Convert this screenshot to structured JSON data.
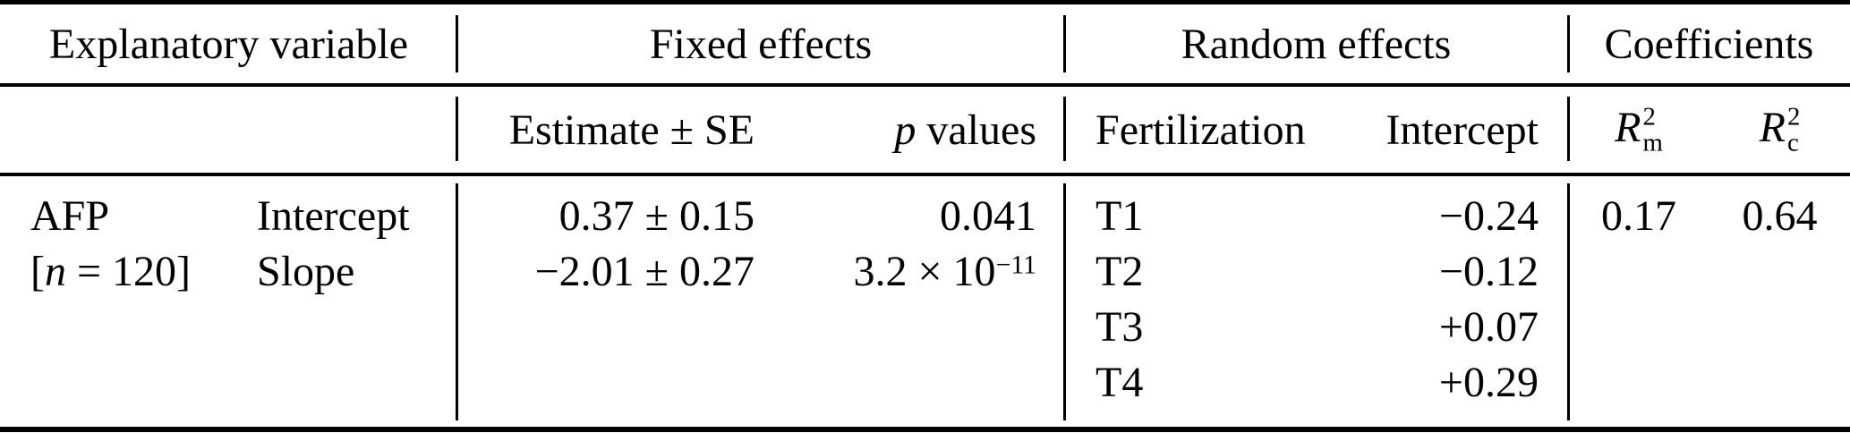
{
  "meta": {
    "background_color": "#ffffff",
    "text_color": "#000000",
    "rule_color": "#000000"
  },
  "groups": {
    "explanatory": "Explanatory variable",
    "fixed": "Fixed effects",
    "random": "Random effects",
    "coefficients": "Coefficients"
  },
  "columns": {
    "estimate": "Estimate ± SE",
    "p_italic": "p",
    "p_rest": " values",
    "fertilization": "Fertilization",
    "intercept": "Intercept",
    "rm": {
      "base": "R",
      "sup": "2",
      "sub": "m"
    },
    "rc": {
      "base": "R",
      "sup": "2",
      "sub": "c"
    }
  },
  "body": {
    "variable": {
      "name": "AFP",
      "n_open": "[",
      "n_italic": "n",
      "n_rest": " = 120]"
    },
    "parameters": [
      "Intercept",
      "Slope"
    ],
    "fixed_effects": [
      {
        "estimate": "0.37 ± 0.15",
        "p": "0.041",
        "p_exp": ""
      },
      {
        "estimate": "−2.01 ± 0.27",
        "p": "3.2 × 10",
        "p_exp": "−11"
      }
    ],
    "random_effects": [
      {
        "level": "T1",
        "value": "−0.24"
      },
      {
        "level": "T2",
        "value": "−0.12"
      },
      {
        "level": "T3",
        "value": "+0.07"
      },
      {
        "level": "T4",
        "value": "+0.29"
      }
    ],
    "coefficients": {
      "rm": "0.17",
      "rc": "0.64"
    }
  }
}
